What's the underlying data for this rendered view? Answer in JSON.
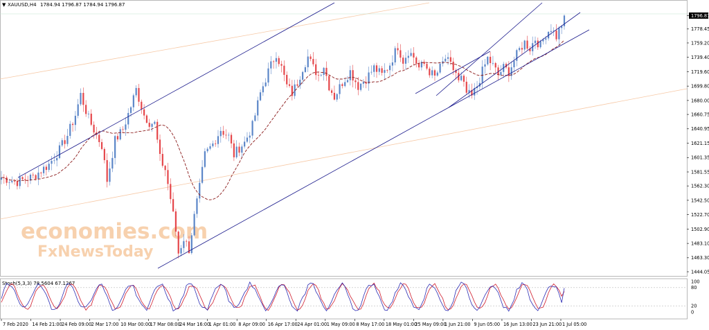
{
  "header": {
    "symbol": "XAUUSD,H4",
    "ohlc": "1784.94 1796.87 1784.94 1796.87"
  },
  "watermark": {
    "line1": "economies.com",
    "line2": "FxNewsToday"
  },
  "colors": {
    "bull": "#5b86c8",
    "bear": "#e5464a",
    "channel": "#1a1a8c",
    "fib": "#f7c9a6",
    "ma": "#8b1a1a",
    "stoch_main": "#2d2db4",
    "stoch_signal": "#d01c2c",
    "grid": "#c8c8c8"
  },
  "chart_data": {
    "type": "candlestick",
    "title": "XAUUSD,H4",
    "ylim": [
      1444.05,
      1805
    ],
    "price_ticks": [
      "1796.87",
      "1778.45",
      "1759.20",
      "1739.40",
      "1719.60",
      "1699.80",
      "1680.00",
      "1660.75",
      "1640.95",
      "1621.15",
      "1601.35",
      "1581.55",
      "1562.30",
      "1542.50",
      "1522.70",
      "1502.90",
      "1483.10",
      "1463.30",
      "1444.05"
    ],
    "last_price": 1796.87,
    "x_labels": [
      "7 Feb 2020",
      "14 Feb 21:00",
      "24 Feb 09:00",
      "2 Mar 17:00",
      "10 Mar 00:00",
      "17 Mar 08:00",
      "24 Mar 16:00",
      "1 Apr 01:00",
      "8 Apr 09:00",
      "16 Apr 17:00",
      "24 Apr 01:00",
      "1 May 09:00",
      "8 May 17:00",
      "18 May 01:00",
      "25 May 09:00",
      "1 Jun 21:00",
      "9 Jun 05:00",
      "16 Jun 13:00",
      "23 Jun 21:00",
      "1 Jul 05:00"
    ],
    "price_path": [
      [
        0,
        1574
      ],
      [
        6,
        1568
      ],
      [
        12,
        1575
      ],
      [
        18,
        1592
      ],
      [
        22,
        1612
      ],
      [
        25,
        1632
      ],
      [
        28,
        1660
      ],
      [
        30,
        1688
      ],
      [
        33,
        1655
      ],
      [
        36,
        1632
      ],
      [
        38,
        1618
      ],
      [
        40,
        1570
      ],
      [
        43,
        1625
      ],
      [
        46,
        1640
      ],
      [
        49,
        1672
      ],
      [
        51,
        1695
      ],
      [
        54,
        1660
      ],
      [
        56,
        1650
      ],
      [
        58,
        1648
      ],
      [
        60,
        1600
      ],
      [
        62,
        1585
      ],
      [
        64,
        1545
      ],
      [
        66,
        1500
      ],
      [
        67,
        1470
      ],
      [
        69,
        1490
      ],
      [
        71,
        1475
      ],
      [
        73,
        1520
      ],
      [
        75,
        1560
      ],
      [
        77,
        1605
      ],
      [
        80,
        1620
      ],
      [
        83,
        1640
      ],
      [
        86,
        1630
      ],
      [
        88,
        1605
      ],
      [
        90,
        1615
      ],
      [
        92,
        1622
      ],
      [
        95,
        1645
      ],
      [
        98,
        1690
      ],
      [
        101,
        1720
      ],
      [
        104,
        1745
      ],
      [
        106,
        1725
      ],
      [
        108,
        1700
      ],
      [
        110,
        1690
      ],
      [
        112,
        1705
      ],
      [
        114,
        1725
      ],
      [
        116,
        1740
      ],
      [
        118,
        1725
      ],
      [
        120,
        1715
      ],
      [
        122,
        1728
      ],
      [
        124,
        1700
      ],
      [
        126,
        1685
      ],
      [
        129,
        1705
      ],
      [
        132,
        1720
      ],
      [
        135,
        1700
      ],
      [
        138,
        1710
      ],
      [
        141,
        1725
      ],
      [
        144,
        1715
      ],
      [
        147,
        1730
      ],
      [
        150,
        1755
      ],
      [
        152,
        1735
      ],
      [
        154,
        1748
      ],
      [
        156,
        1740
      ],
      [
        158,
        1725
      ],
      [
        160,
        1730
      ],
      [
        162,
        1720
      ],
      [
        164,
        1712
      ],
      [
        166,
        1725
      ],
      [
        168,
        1738
      ],
      [
        170,
        1728
      ],
      [
        172,
        1718
      ],
      [
        173,
        1705
      ],
      [
        174,
        1710
      ],
      [
        176,
        1690
      ],
      [
        178,
        1685
      ],
      [
        180,
        1700
      ],
      [
        182,
        1720
      ],
      [
        184,
        1738
      ],
      [
        186,
        1728
      ],
      [
        188,
        1715
      ],
      [
        190,
        1725
      ],
      [
        192,
        1720
      ],
      [
        194,
        1735
      ],
      [
        196,
        1750
      ],
      [
        198,
        1760
      ],
      [
        200,
        1752
      ],
      [
        202,
        1765
      ],
      [
        204,
        1755
      ],
      [
        206,
        1772
      ],
      [
        208,
        1780
      ],
      [
        210,
        1768
      ],
      [
        212,
        1785
      ],
      [
        213,
        1796.87
      ]
    ],
    "ma_period": 20,
    "stochastic": {
      "label": "Stoch(5,3,3) 78.5604 67.1267",
      "main": 78.5604,
      "signal": 67.1267,
      "levels": [
        80,
        20
      ],
      "ylim": [
        0,
        100
      ],
      "ticks": [
        "100",
        "80",
        "20",
        "0"
      ]
    }
  }
}
